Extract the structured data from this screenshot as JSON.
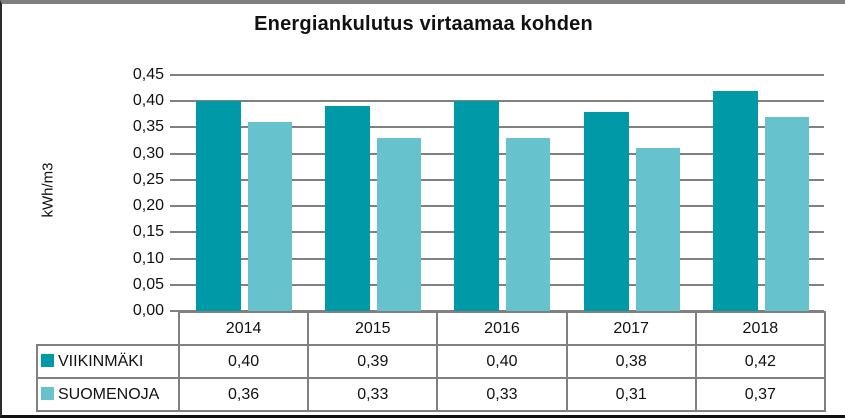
{
  "chart_data": {
    "type": "bar",
    "title": "Energiankulutus virtaamaa kohden",
    "ylabel": "kWh/m3",
    "xlabel": "",
    "categories": [
      "2014",
      "2015",
      "2016",
      "2017",
      "2018"
    ],
    "series": [
      {
        "name": "VIIKINMÄKI",
        "color": "#0099A8",
        "values": [
          0.4,
          0.39,
          0.4,
          0.38,
          0.42
        ],
        "display_values": [
          "0,40",
          "0,39",
          "0,40",
          "0,38",
          "0,42"
        ]
      },
      {
        "name": "SUOMENOJA",
        "color": "#66C2CC",
        "values": [
          0.36,
          0.33,
          0.33,
          0.31,
          0.37
        ],
        "display_values": [
          "0,36",
          "0,33",
          "0,33",
          "0,31",
          "0,37"
        ]
      }
    ],
    "ylim": [
      0,
      0.45
    ],
    "ytick_step": 0.05,
    "ytick_labels": [
      "0,00",
      "0,05",
      "0,10",
      "0,15",
      "0,20",
      "0,25",
      "0,30",
      "0,35",
      "0,40",
      "0,45"
    ],
    "grid": true,
    "gridline_color": "#808080",
    "table_border_color": "#808080",
    "legend_position": "data-table-left",
    "decimal_separator": ","
  }
}
